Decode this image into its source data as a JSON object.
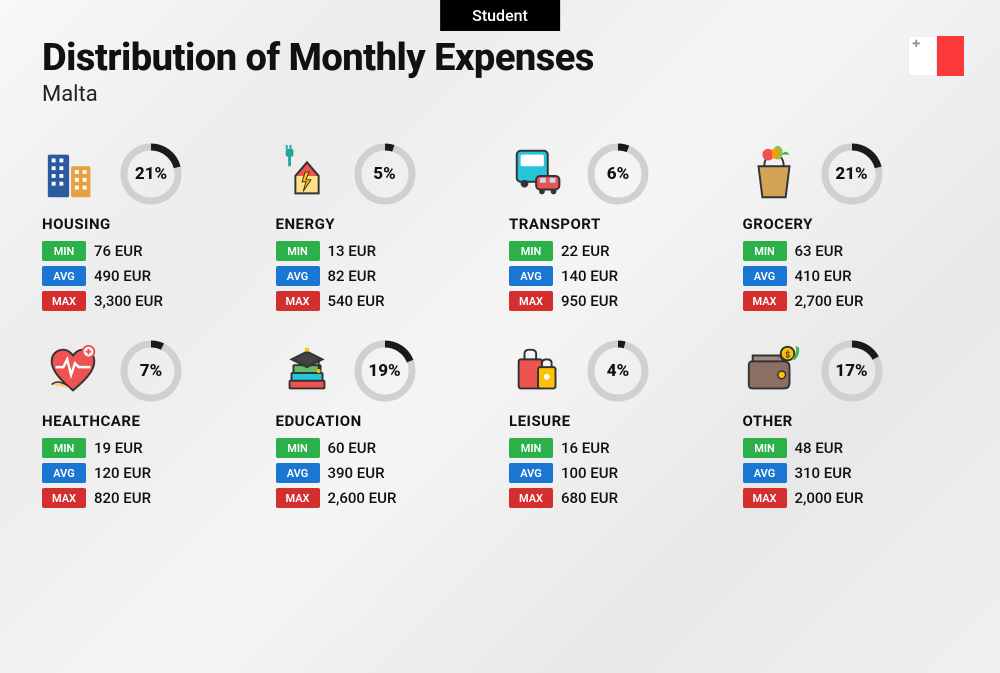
{
  "badge": "Student",
  "title": "Distribution of Monthly Expenses",
  "subtitle": "Malta",
  "flag_colors": {
    "left": "#ffffff",
    "right": "#fc3838"
  },
  "labels": {
    "min": "MIN",
    "avg": "AVG",
    "max": "MAX"
  },
  "label_colors": {
    "min": "#2bb04a",
    "avg": "#1976d2",
    "max": "#d32f2f"
  },
  "ring": {
    "radius": 27,
    "stroke_bg": "#d0d0d0",
    "stroke_fg": "#1a1a1a",
    "stroke_width": 7
  },
  "typography": {
    "title_fontsize": 38,
    "subtitle_fontsize": 22,
    "pct_fontsize": 17,
    "cat_fontsize": 15,
    "value_fontsize": 15,
    "label_fontsize": 11
  },
  "categories": [
    {
      "key": "housing",
      "name": "HOUSING",
      "pct": 21,
      "pct_label": "21%",
      "min": "76 EUR",
      "avg": "490 EUR",
      "max": "3,300 EUR"
    },
    {
      "key": "energy",
      "name": "ENERGY",
      "pct": 5,
      "pct_label": "5%",
      "min": "13 EUR",
      "avg": "82 EUR",
      "max": "540 EUR"
    },
    {
      "key": "transport",
      "name": "TRANSPORT",
      "pct": 6,
      "pct_label": "6%",
      "min": "22 EUR",
      "avg": "140 EUR",
      "max": "950 EUR"
    },
    {
      "key": "grocery",
      "name": "GROCERY",
      "pct": 21,
      "pct_label": "21%",
      "min": "63 EUR",
      "avg": "410 EUR",
      "max": "2,700 EUR"
    },
    {
      "key": "healthcare",
      "name": "HEALTHCARE",
      "pct": 7,
      "pct_label": "7%",
      "min": "19 EUR",
      "avg": "120 EUR",
      "max": "820 EUR"
    },
    {
      "key": "education",
      "name": "EDUCATION",
      "pct": 19,
      "pct_label": "19%",
      "min": "60 EUR",
      "avg": "390 EUR",
      "max": "2,600 EUR"
    },
    {
      "key": "leisure",
      "name": "LEISURE",
      "pct": 4,
      "pct_label": "4%",
      "min": "16 EUR",
      "avg": "100 EUR",
      "max": "680 EUR"
    },
    {
      "key": "other",
      "name": "OTHER",
      "pct": 17,
      "pct_label": "17%",
      "min": "48 EUR",
      "avg": "310 EUR",
      "max": "2,000 EUR"
    }
  ],
  "icons": {
    "housing": "<svg viewBox='0 0 64 64'><rect x='6' y='12' width='22' height='44' fill='#2c5aa0' rx='2'/><rect x='10' y='16' width='4' height='4' fill='#fff'/><rect x='18' y='16' width='4' height='4' fill='#fff'/><rect x='10' y='24' width='4' height='4' fill='#fff'/><rect x='18' y='24' width='4' height='4' fill='#fff'/><rect x='10' y='32' width='4' height='4' fill='#fff'/><rect x='18' y='32' width='4' height='4' fill='#fff'/><rect x='10' y='40' width='4' height='4' fill='#fff'/><rect x='18' y='40' width='4' height='4' fill='#fff'/><rect x='30' y='24' width='20' height='32' fill='#e8a23d' rx='2'/><rect x='34' y='28' width='4' height='4' fill='#fff'/><rect x='42' y='28' width='4' height='4' fill='#fff'/><rect x='34' y='36' width='4' height='4' fill='#fff'/><rect x='42' y='36' width='4' height='4' fill='#fff'/><rect x='34' y='44' width='4' height='4' fill='#fff'/><rect x='42' y='44' width='4' height='4' fill='#fff'/></svg>",
    "energy": "<svg viewBox='0 0 64 64'><path d='M20 34 L32 20 L44 34 L44 52 L20 52 Z' fill='#ffe082' stroke='#333' stroke-width='2'/><path d='M20 34 L32 20 L44 34' fill='#ef5350' stroke='#333' stroke-width='2'/><path d='M30 30 L34 30 L31 38 L36 38 L28 50 L31 40 L27 40 Z' fill='#ffc107' stroke='#333' stroke-width='1'/><path d='M14 12 L14 24' stroke='#26a69a' stroke-width='3' fill='none'/><rect x='10' y='6' width='8' height='8' rx='2' fill='#26a69a'/><path d='M11 2 L11 6 M15 2 L15 6' stroke='#26a69a' stroke-width='2'/></svg>",
    "transport": "<svg viewBox='0 0 64 64'><rect x='8' y='8' width='32' height='32' rx='4' fill='#26c6da' stroke='#333' stroke-width='2'/><rect x='12' y='12' width='24' height='12' fill='#fff' rx='2'/><circle cx='16' cy='42' r='4' fill='#333'/><circle cx='32' cy='42' r='4' fill='#333'/><rect x='28' y='34' width='24' height='14' rx='4' fill='#ef5350' stroke='#333' stroke-width='2'/><rect x='32' y='36' width='6' height='5' fill='#bbdefb'/><rect x='42' y='36' width='6' height='5' fill='#bbdefb'/><circle cx='34' cy='50' r='3' fill='#333'/><circle cx='46' cy='50' r='3' fill='#333'/></svg>",
    "grocery": "<svg viewBox='0 0 64 64'><path d='M16 24 L48 24 L44 56 L20 56 Z' fill='#d4a355' stroke='#333' stroke-width='2'/><path d='M22 24 C22 16 26 12 32 12 C38 12 42 16 42 24' fill='none' stroke='#333' stroke-width='2'/><circle cx='26' cy='12' r='6' fill='#ef5350'/><ellipse cx='36' cy='10' rx='5' ry='7' fill='#8bc34a'/><rect x='30' y='6' width='6' height='10' rx='2' fill='#ff9800'/><path d='M40 12 Q44 6 48 12' fill='#4caf50'/></svg>",
    "healthcare": "<svg viewBox='0 0 64 64'><path d='M32 52 C20 42 10 32 10 22 C10 14 16 10 22 10 C28 10 32 16 32 16 C32 16 36 10 42 10 C48 10 54 14 54 22 C54 32 44 42 32 52 Z' fill='#ef5350' stroke='#333' stroke-width='2'/><path d='M14 28 L22 28 L26 20 L30 36 L34 24 L38 28 L50 28' fill='none' stroke='#fff' stroke-width='2.5'/><circle cx='48' cy='12' r='6' fill='#fff' stroke='#ef5350' stroke-width='2'/><path d='M48 9 L48 15 M45 12 L51 12' stroke='#ef5350' stroke-width='2'/><path d='M10 46 Q14 42 20 44 Q26 46 30 50' fill='#ffcc80' stroke='#333' stroke-width='1.5'/></svg>",
    "education": "<svg viewBox='0 0 64 64'><rect x='14' y='42' width='36' height='8' fill='#ef5350' stroke='#333' stroke-width='2' rx='1'/><rect x='16' y='34' width='32' height='8' fill='#26c6da' stroke='#333' stroke-width='2' rx='1'/><rect x='18' y='26' width='28' height='8' fill='#66bb6a' stroke='#333' stroke-width='2' rx='1'/><path d='M16 20 L32 12 L48 20 L32 28 Z' fill='#424242' stroke='#333' stroke-width='2'/><rect x='30' y='8' width='4' height='4' fill='#ffc107'/><path d='M44 20 L44 30' stroke='#333' stroke-width='2'/><circle cx='44' cy='32' r='2' fill='#ffc107'/></svg>",
    "leisure": "<svg viewBox='0 0 64 64'><rect x='10' y='20' width='24' height='30' fill='#ef5350' stroke='#333' stroke-width='2' rx='2'/><path d='M16 20 L16 14 Q16 10 22 10 Q28 10 28 14 L28 20' fill='none' stroke='#333' stroke-width='2'/><rect x='30' y='28' width='18' height='22' fill='#ffc107' stroke='#333' stroke-width='2' rx='2'/><path d='M34 28 L34 24 Q34 20 39 20 Q44 20 44 24 L44 28' fill='none' stroke='#333' stroke-width='2'/><circle cx='39' cy='38' r='3' fill='#fff'/></svg>",
    "other": "<svg viewBox='0 0 64 64'><path d='M10 22 L42 22 Q48 22 48 28 L48 44 Q48 50 42 50 L10 50 Q6 50 6 46 L6 26 Q6 22 10 22 Z' fill='#8d6e63' stroke='#333' stroke-width='2'/><path d='M10 16 L38 16 L42 22 L10 22 Z' fill='#a1887f' stroke='#333' stroke-width='2'/><circle cx='40' cy='36' r='4' fill='#ffc107' stroke='#333' stroke-width='1.5'/><circle cx='46' cy='14' r='7' fill='#ffc107' stroke='#333' stroke-width='2'/><text x='46' y='18' font-size='9' text-anchor='middle' fill='#333' font-weight='bold'>$</text><path d='M52 20 Q58 14 56 8' fill='none' stroke='#4caf50' stroke-width='3'/><path d='M54 6 L58 8 L56 12 Z' fill='#4caf50'/></svg>"
  }
}
